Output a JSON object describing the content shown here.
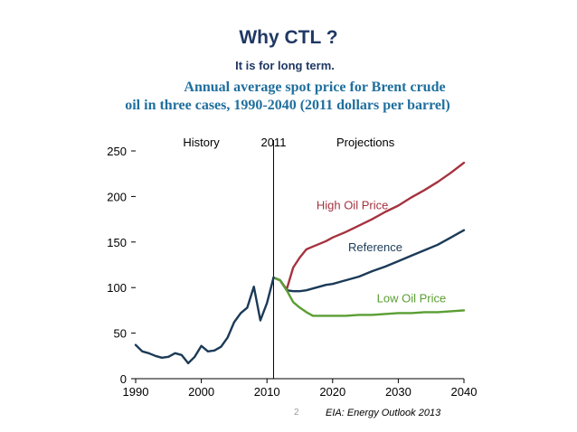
{
  "slide": {
    "title": "Why CTL ?",
    "subtitle": "It is for long term.",
    "page_number": "2",
    "source": "EIA: Energy Outlook 2013"
  },
  "chart_data": {
    "type": "line",
    "title_line1": "Annual average spot price for Brent crude",
    "title_line2": "oil in three cases, 1990-2040 (2011 dollars per barrel)",
    "xlabel": "",
    "ylabel": "",
    "xlim": [
      1990,
      2040
    ],
    "ylim": [
      0,
      250
    ],
    "x_ticks": [
      1990,
      2000,
      2010,
      2020,
      2030,
      2040
    ],
    "y_ticks": [
      0,
      50,
      100,
      150,
      200,
      250
    ],
    "grid": false,
    "divider_year": 2011,
    "region_labels": {
      "history": "History",
      "divider": "2011",
      "projections": "Projections"
    },
    "history": {
      "color": "#1b3a57",
      "x": [
        1990,
        1991,
        1992,
        1993,
        1994,
        1995,
        1996,
        1997,
        1998,
        1999,
        2000,
        2001,
        2002,
        2003,
        2004,
        2005,
        2006,
        2007,
        2008,
        2009,
        2010,
        2011
      ],
      "y": [
        37,
        30,
        28,
        25,
        23,
        24,
        28,
        26,
        17,
        24,
        36,
        30,
        31,
        35,
        45,
        62,
        72,
        78,
        101,
        64,
        83,
        111
      ]
    },
    "series": [
      {
        "name": "High Oil Price",
        "color": "#a5333f",
        "x": [
          2011,
          2012,
          2013,
          2014,
          2015,
          2016,
          2017,
          2018,
          2019,
          2020,
          2022,
          2024,
          2026,
          2028,
          2030,
          2032,
          2034,
          2036,
          2038,
          2040
        ],
        "y": [
          111,
          108,
          98,
          122,
          133,
          142,
          145,
          148,
          151,
          155,
          161,
          168,
          175,
          183,
          190,
          199,
          207,
          216,
          226,
          237
        ]
      },
      {
        "name": "Reference",
        "color": "#1b3a57",
        "x": [
          2011,
          2012,
          2013,
          2014,
          2015,
          2016,
          2017,
          2018,
          2019,
          2020,
          2022,
          2024,
          2026,
          2028,
          2030,
          2032,
          2034,
          2036,
          2038,
          2040
        ],
        "y": [
          111,
          108,
          97,
          96,
          96,
          97,
          99,
          101,
          103,
          104,
          108,
          112,
          118,
          123,
          129,
          135,
          141,
          147,
          155,
          163
        ]
      },
      {
        "name": "Low Oil Price",
        "color": "#5a9e33",
        "x": [
          2011,
          2012,
          2013,
          2014,
          2015,
          2016,
          2017,
          2018,
          2019,
          2020,
          2022,
          2024,
          2026,
          2028,
          2030,
          2032,
          2034,
          2036,
          2038,
          2040
        ],
        "y": [
          111,
          108,
          97,
          84,
          78,
          73,
          69,
          69,
          69,
          69,
          69,
          70,
          70,
          71,
          72,
          72,
          73,
          73,
          74,
          75
        ]
      }
    ]
  }
}
